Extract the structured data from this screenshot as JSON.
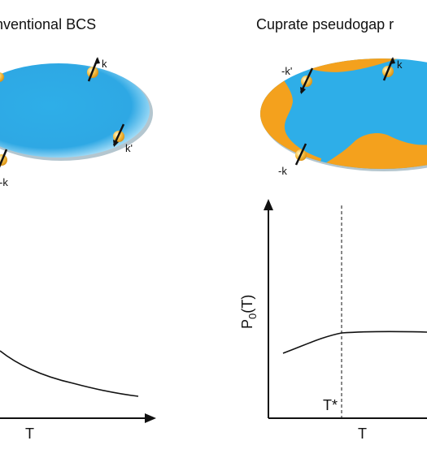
{
  "panels": {
    "left": {
      "title": "nventional BCS",
      "pair_labels": {
        "k": "k",
        "k_prime": "k'",
        "minus_k": "-k"
      },
      "xlabel": "T",
      "curve": "decreasing"
    },
    "right": {
      "title": "Cuprate pseudogap r",
      "pair_labels": {
        "k": "k",
        "minus_k_prime": "-k'",
        "minus_k": "-k"
      },
      "ylabel_main": "P",
      "ylabel_sub": "0",
      "ylabel_tail": "(T)",
      "xlabel": "T",
      "marker_label": "T*",
      "curve": "rising then flat after T*"
    }
  },
  "colors": {
    "fermi_sea": "#2eaee8",
    "fermi_sea_light": "#a8e0fb",
    "pseudogap_region": "#f4a11d",
    "electron": "#f7c34a",
    "axis": "#111111"
  }
}
